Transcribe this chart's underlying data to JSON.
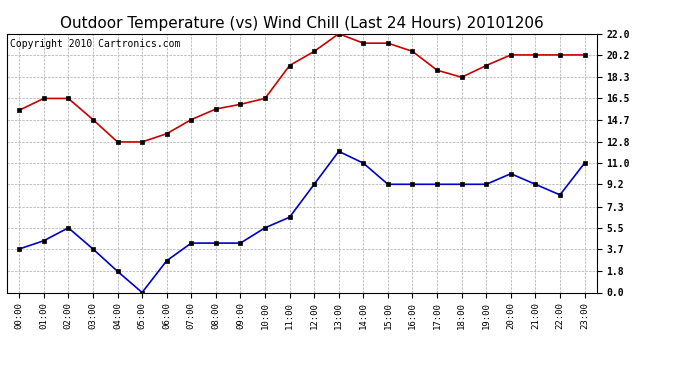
{
  "title": "Outdoor Temperature (vs) Wind Chill (Last 24 Hours) 20101206",
  "copyright": "Copyright 2010 Cartronics.com",
  "x_labels": [
    "00:00",
    "01:00",
    "02:00",
    "03:00",
    "04:00",
    "05:00",
    "06:00",
    "07:00",
    "08:00",
    "09:00",
    "10:00",
    "11:00",
    "12:00",
    "13:00",
    "14:00",
    "15:00",
    "16:00",
    "17:00",
    "18:00",
    "19:00",
    "20:00",
    "21:00",
    "22:00",
    "23:00"
  ],
  "red_data": [
    15.5,
    16.5,
    16.5,
    14.7,
    12.8,
    12.8,
    13.5,
    14.7,
    15.6,
    16.0,
    16.5,
    19.3,
    20.5,
    22.0,
    21.2,
    21.2,
    20.5,
    18.9,
    18.3,
    19.3,
    20.2,
    20.2,
    20.2,
    20.2
  ],
  "blue_data": [
    3.7,
    4.4,
    5.5,
    3.7,
    1.8,
    0.0,
    2.7,
    4.2,
    4.2,
    4.2,
    5.5,
    6.4,
    9.2,
    12.0,
    11.0,
    9.2,
    9.2,
    9.2,
    9.2,
    9.2,
    10.1,
    9.2,
    8.3,
    11.0
  ],
  "y_ticks": [
    0.0,
    1.8,
    3.7,
    5.5,
    7.3,
    9.2,
    11.0,
    12.8,
    14.7,
    16.5,
    18.3,
    20.2,
    22.0
  ],
  "y_min": 0.0,
  "y_max": 22.0,
  "red_color": "#cc0000",
  "blue_color": "#0000cc",
  "bg_color": "#ffffff",
  "grid_color": "#aaaaaa",
  "title_fontsize": 11,
  "copyright_fontsize": 7,
  "marker": "s",
  "marker_size": 3,
  "linewidth": 1.2
}
